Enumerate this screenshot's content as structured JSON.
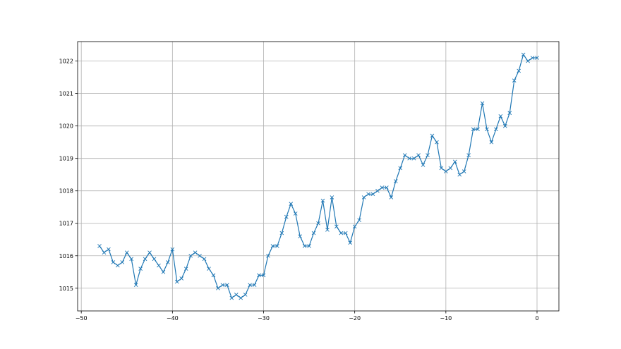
{
  "chart_data": {
    "type": "line",
    "title": "",
    "xlabel": "",
    "ylabel": "",
    "xlim": [
      -50.4,
      2.4
    ],
    "ylim": [
      1014.3,
      1022.6
    ],
    "grid": true,
    "marker": "x",
    "color": "#1f77b4",
    "x_ticks": [
      -50,
      -40,
      -30,
      -20,
      -10,
      0
    ],
    "y_ticks": [
      1015,
      1016,
      1017,
      1018,
      1019,
      1020,
      1021,
      1022
    ],
    "x_start": -48,
    "x_step": 0.5,
    "series": [
      {
        "values": [
          1016.3,
          1016.1,
          1016.2,
          1015.8,
          1015.7,
          1015.8,
          1016.1,
          1015.9,
          1015.1,
          1015.6,
          1015.9,
          1016.1,
          1015.9,
          1015.7,
          1015.5,
          1015.8,
          1016.2,
          1015.2,
          1015.3,
          1015.6,
          1016.0,
          1016.1,
          1016.0,
          1015.9,
          1015.6,
          1015.4,
          1015.0,
          1015.1,
          1015.1,
          1014.7,
          1014.8,
          1014.7,
          1014.8,
          1015.1,
          1015.1,
          1015.4,
          1015.4,
          1016.0,
          1016.3,
          1016.3,
          1016.7,
          1017.2,
          1017.6,
          1017.3,
          1016.6,
          1016.3,
          1016.3,
          1016.7,
          1017.0,
          1017.7,
          1016.8,
          1017.8,
          1016.9,
          1016.7,
          1016.7,
          1016.4,
          1016.9,
          1017.1,
          1017.8,
          1017.9,
          1017.9,
          1018.0,
          1018.1,
          1018.1,
          1017.8,
          1018.3,
          1018.7,
          1019.1,
          1019.0,
          1019.0,
          1019.1,
          1018.8,
          1019.1,
          1019.7,
          1019.5,
          1018.7,
          1018.6,
          1018.7,
          1018.9,
          1018.5,
          1018.6,
          1019.1,
          1019.9,
          1019.9,
          1020.7,
          1019.9,
          1019.5,
          1019.9,
          1020.3,
          1020.0,
          1020.4,
          1021.4,
          1021.7,
          1022.2,
          1022.0,
          1022.1,
          1022.1
        ]
      }
    ]
  }
}
